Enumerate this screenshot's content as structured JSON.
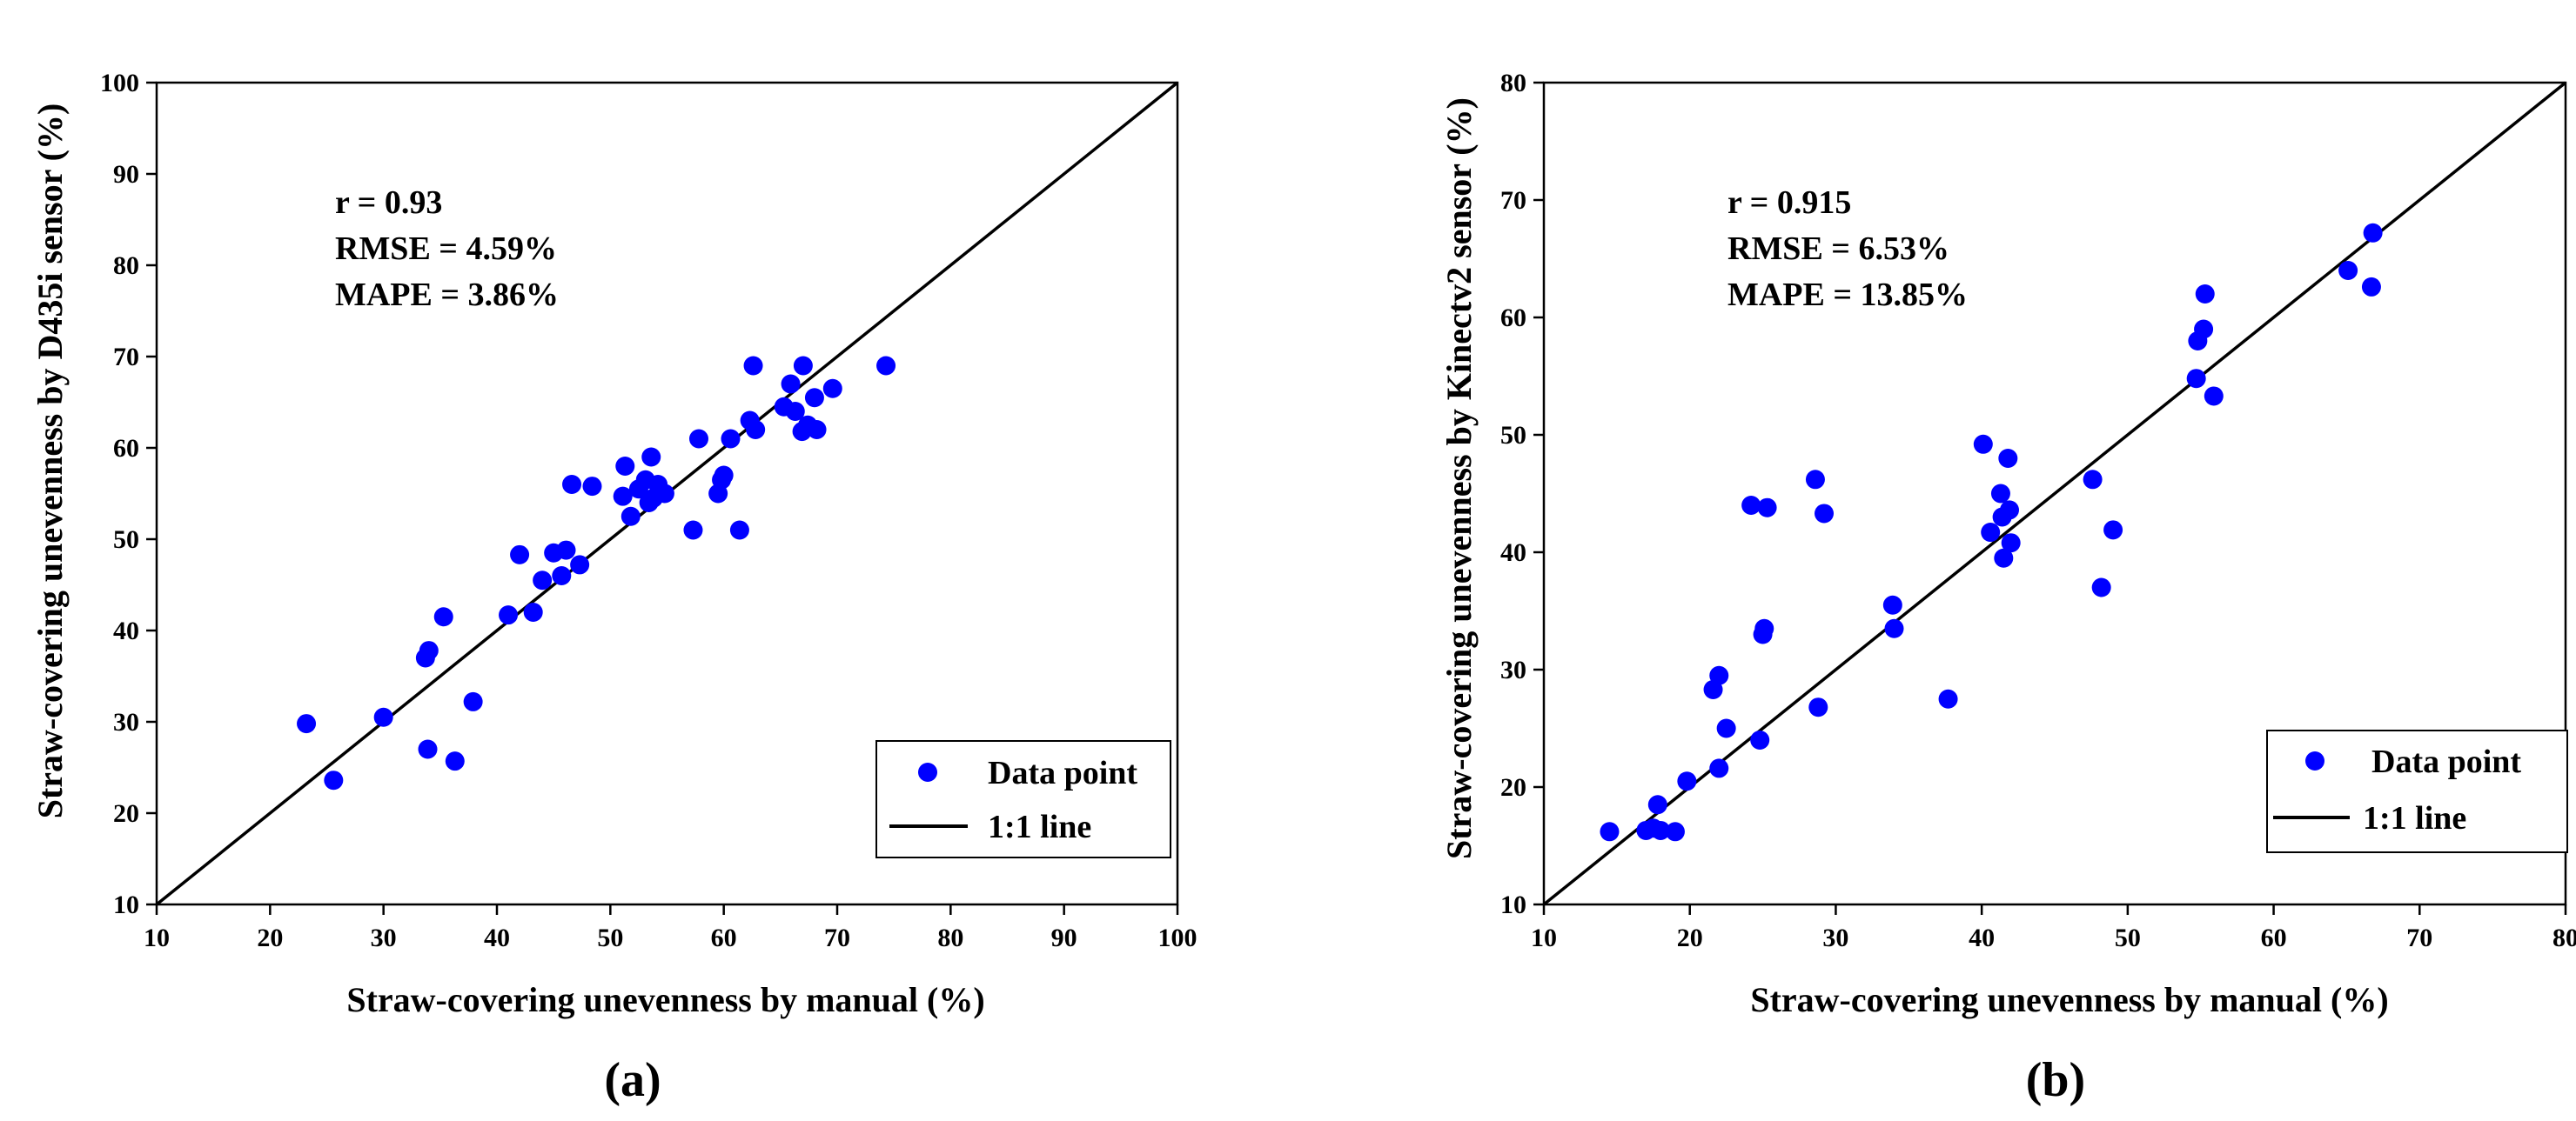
{
  "chart_data": [
    {
      "type": "scatter",
      "panel_label": "(a)",
      "xlabel": "Straw-covering unevenness by manual (%)",
      "ylabel": "Straw-covering unevenness by D435i sensor (%)",
      "xlim": [
        10,
        100
      ],
      "ylim": [
        10,
        100
      ],
      "xticks": [
        10,
        20,
        30,
        40,
        50,
        60,
        70,
        80,
        90,
        100
      ],
      "yticks": [
        10,
        20,
        30,
        40,
        50,
        60,
        70,
        80,
        90,
        100
      ],
      "grid": false,
      "legend_position": "bottom-right",
      "annotations": [
        "r = 0.93",
        "RMSE = 4.59%",
        "MAPE = 3.86%"
      ],
      "series": [
        {
          "name": "Data point",
          "kind": "points",
          "color": "#0000ff",
          "x": [
            23.2,
            25.6,
            30.0,
            33.7,
            33.9,
            34.0,
            35.3,
            36.3,
            37.9,
            41.0,
            42.0,
            43.2,
            44.0,
            45.0,
            45.7,
            46.1,
            46.6,
            47.3,
            48.4,
            51.1,
            51.3,
            51.8,
            52.5,
            53.1,
            53.4,
            53.6,
            53.8,
            54.2,
            54.8,
            57.3,
            57.8,
            59.5,
            59.8,
            60.0,
            60.6,
            61.4,
            62.3,
            62.6,
            62.8,
            65.3,
            65.9,
            66.3,
            66.9,
            67.0,
            67.4,
            68.0,
            68.2,
            69.6,
            74.3
          ],
          "y": [
            29.8,
            23.6,
            30.5,
            37.0,
            27.0,
            37.8,
            41.5,
            25.7,
            32.2,
            41.7,
            48.3,
            42.0,
            45.5,
            48.5,
            46.0,
            48.8,
            56.0,
            47.2,
            55.8,
            54.7,
            58.0,
            52.5,
            55.5,
            56.5,
            54.0,
            59.0,
            54.5,
            56.0,
            55.0,
            51.0,
            61.0,
            55.0,
            56.5,
            57.0,
            61.0,
            51.0,
            63.0,
            69.0,
            62.0,
            64.5,
            67.0,
            64.0,
            61.8,
            69.0,
            62.5,
            65.5,
            62.0,
            66.5,
            69.0
          ]
        },
        {
          "name": "1:1 line",
          "kind": "line",
          "color": "#000000",
          "x": [
            10,
            100
          ],
          "y": [
            10,
            100
          ]
        }
      ]
    },
    {
      "type": "scatter",
      "panel_label": "(b)",
      "xlabel": "Straw-covering unevenness by manual (%)",
      "ylabel": "Straw-covering unevenness by Kinectv2 sensor (%)",
      "xlim": [
        10,
        80
      ],
      "ylim": [
        10,
        80
      ],
      "xticks": [
        10,
        20,
        30,
        40,
        50,
        60,
        70,
        80
      ],
      "yticks": [
        10,
        20,
        30,
        40,
        50,
        60,
        70,
        80
      ],
      "grid": false,
      "legend_position": "bottom-right",
      "annotations": [
        "r = 0.915",
        "RMSE = 6.53%",
        "MAPE = 13.85%"
      ],
      "series": [
        {
          "name": "Data point",
          "kind": "points",
          "color": "#0000ff",
          "x": [
            14.5,
            17.0,
            17.5,
            17.8,
            18.0,
            19.0,
            19.8,
            21.6,
            22.0,
            22.0,
            22.5,
            24.2,
            24.8,
            25.0,
            25.1,
            25.3,
            28.6,
            28.8,
            29.2,
            33.9,
            34.0,
            37.7,
            40.1,
            40.6,
            41.3,
            41.4,
            41.5,
            41.8,
            41.9,
            42.0,
            47.6,
            48.2,
            49.0,
            54.7,
            54.8,
            55.2,
            55.3,
            55.9,
            65.1,
            66.7,
            66.8
          ],
          "y": [
            16.2,
            16.3,
            16.5,
            18.5,
            16.3,
            16.2,
            20.5,
            28.3,
            29.5,
            21.6,
            25.0,
            44.0,
            24.0,
            33.0,
            33.5,
            43.8,
            46.2,
            26.8,
            43.3,
            35.5,
            33.5,
            27.5,
            49.2,
            41.7,
            45.0,
            43.0,
            39.5,
            48.0,
            43.6,
            40.8,
            46.2,
            37.0,
            41.9,
            54.8,
            58.0,
            59.0,
            62.0,
            53.3,
            64.0,
            62.6,
            67.2
          ]
        },
        {
          "name": "1:1 line",
          "kind": "line",
          "color": "#000000",
          "x": [
            10,
            80
          ],
          "y": [
            10,
            80
          ]
        }
      ]
    }
  ]
}
